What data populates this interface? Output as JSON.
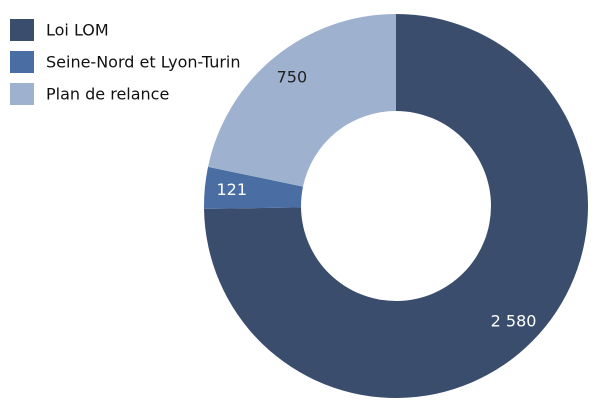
{
  "chart_data": {
    "type": "donut",
    "categories": [
      "Loi LOM",
      "Seine-Nord et Lyon-Turin",
      "Plan de relance"
    ],
    "values": [
      2580,
      121,
      750
    ],
    "value_labels": [
      "2 580",
      "121",
      "750"
    ],
    "colors": [
      "#3a4d6d",
      "#4a6da3",
      "#9eb2cf"
    ],
    "legend": "upper left"
  }
}
